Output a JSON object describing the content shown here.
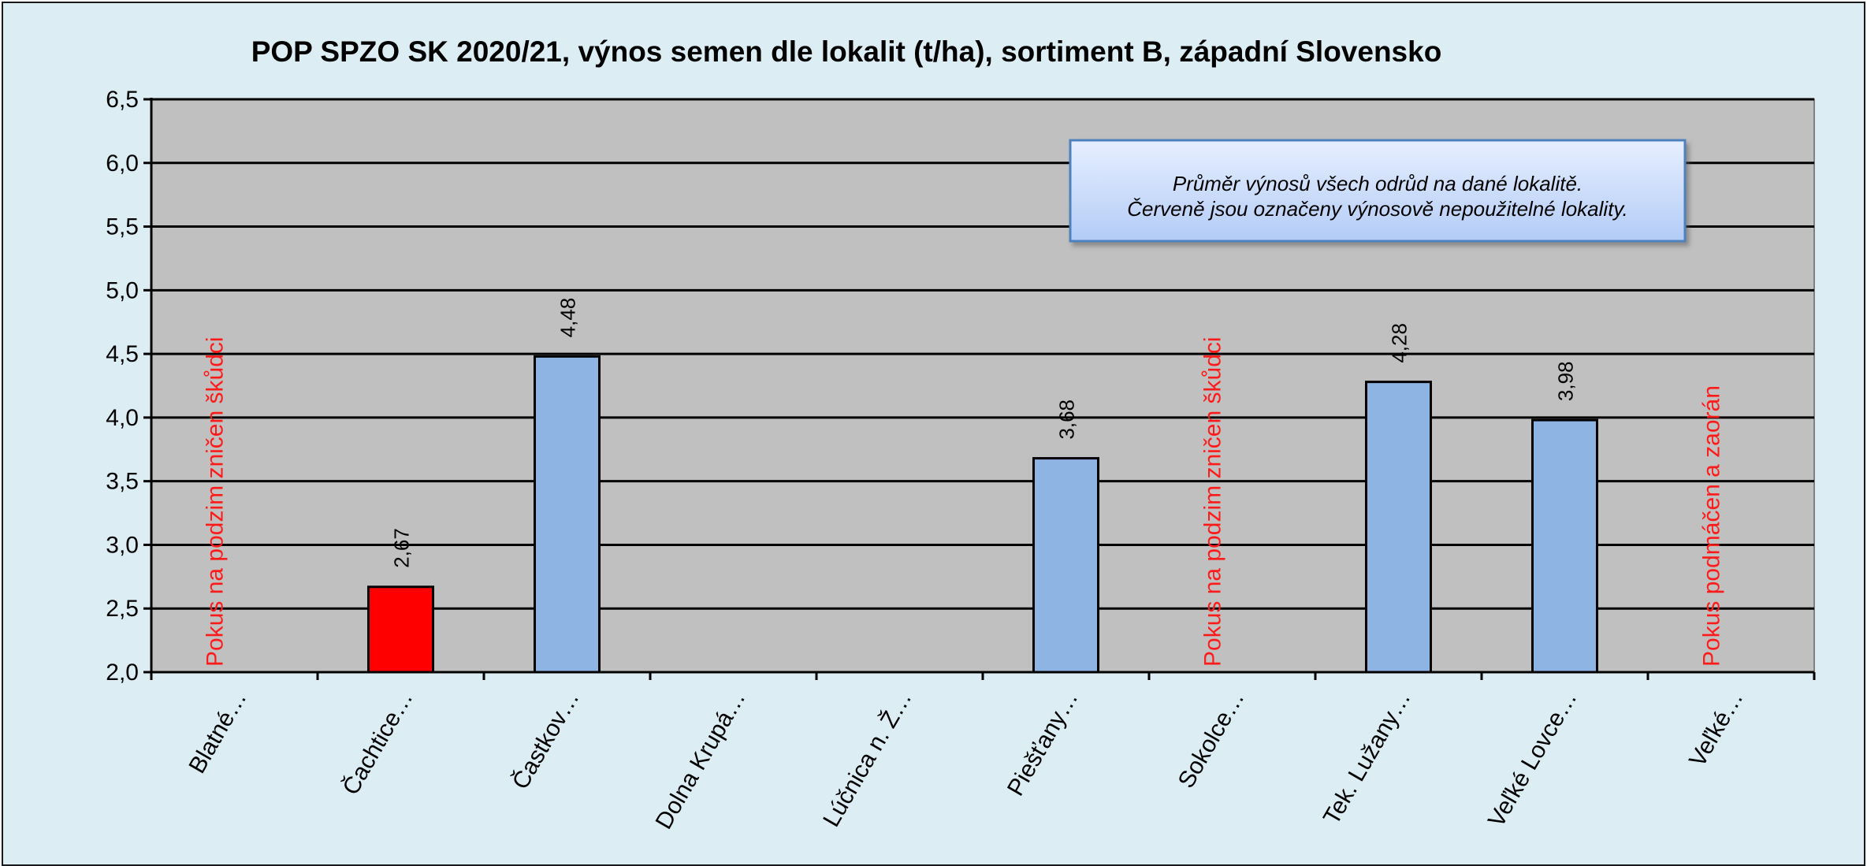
{
  "chart_data": {
    "type": "bar",
    "title": "POP SPZO SK 2020/21, výnos semen dle lokalit (t/ha), sortiment B, západní Slovensko",
    "xlabel": "",
    "ylabel": "",
    "ylim": [
      2.0,
      6.5
    ],
    "yticks": [
      "2,0",
      "2,5",
      "3,0",
      "3,5",
      "4,0",
      "4,5",
      "5,0",
      "5,5",
      "6,0",
      "6,5"
    ],
    "grid": true,
    "categories": [
      "Blatné…",
      "Čachtice…",
      "Častkov…",
      "Dolna Krupá…",
      "Lúčnica n. Ž…",
      "Piešťany…",
      "Sokolce…",
      "Tek. Lužany…",
      "Veľké Lovce…",
      "Veľké…"
    ],
    "values": [
      null,
      2.67,
      4.48,
      null,
      null,
      3.68,
      null,
      4.28,
      3.98,
      null
    ],
    "value_labels": [
      "",
      "2,67",
      "4,48",
      "",
      "",
      "3,68",
      "",
      "4,28",
      "3,98",
      ""
    ],
    "bar_colors": [
      "",
      "#ff0000",
      "#8eb4e3",
      "",
      "",
      "#8eb4e3",
      "",
      "#8eb4e3",
      "#8eb4e3",
      ""
    ],
    "notes": [
      "Pokus na podzim zničen škůdci",
      "",
      "",
      "",
      "",
      "",
      "Pokus na podzim zničen škůdci",
      "",
      "",
      "Pokus podmáčen a zaorán"
    ],
    "legend": {
      "line1": "Průměr výnosů všech odrůd na dané lokalitě.",
      "line2": "Červeně jsou označeny výnosově nepoužitelné lokality."
    },
    "colors": {
      "background": "#dcedf4",
      "plot_area": "#c0c0c0",
      "bar_default": "#8eb4e3",
      "bar_unusable": "#ff0000",
      "note_text": "#ff1a1a"
    }
  }
}
